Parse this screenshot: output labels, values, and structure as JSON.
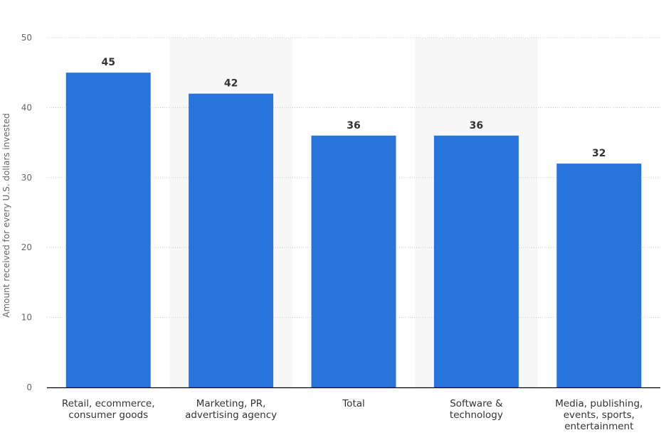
{
  "chart_data": {
    "type": "bar",
    "categories": [
      [
        "Retail, ecommerce,",
        "consumer goods"
      ],
      [
        "Marketing, PR,",
        "advertising agency"
      ],
      [
        "Total"
      ],
      [
        "Software &",
        "technology"
      ],
      [
        "Media, publishing,",
        "events, sports,",
        "entertainment"
      ]
    ],
    "values": [
      45,
      42,
      36,
      36,
      32
    ],
    "title": "",
    "xlabel": "",
    "ylabel": "Amount received for every U.S. dollars invested",
    "ylim": [
      0,
      50
    ],
    "yticks": [
      0,
      10,
      20,
      30,
      40,
      50
    ],
    "grid": true,
    "bar_color": "#2874dd",
    "band_color": "#f7f7f7",
    "grid_color": "#cccccc",
    "axis_color": "#000000"
  }
}
